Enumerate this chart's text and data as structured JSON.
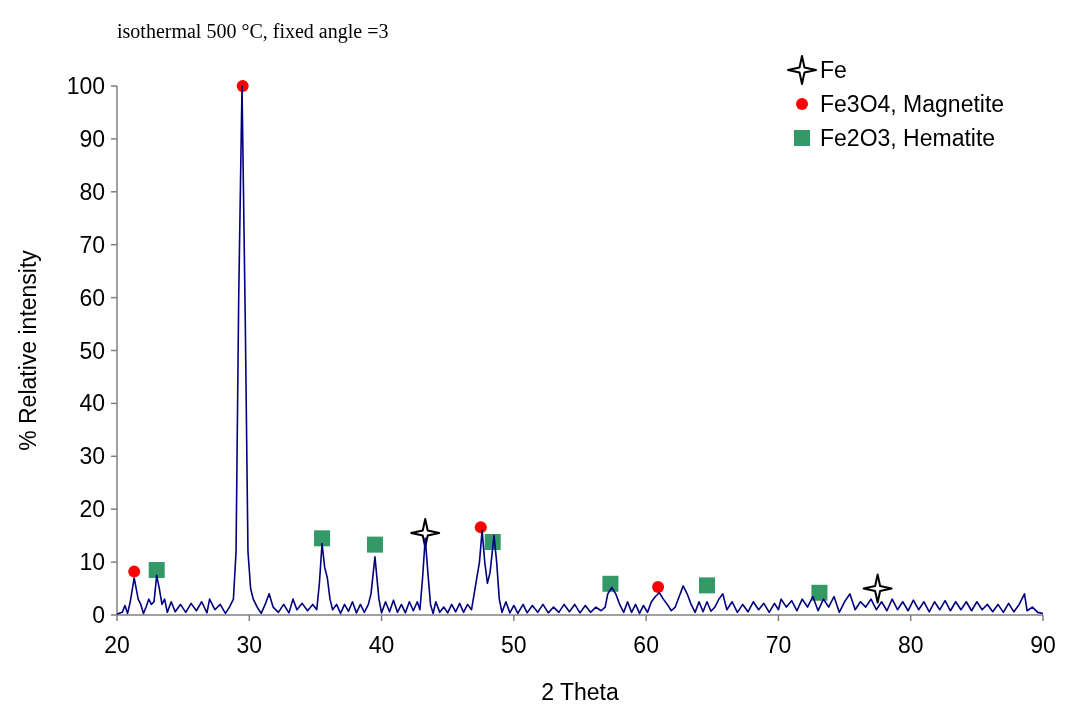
{
  "chart_data": {
    "type": "line",
    "title": "isothermal 500 °C, fixed angle =3",
    "xlabel": "2 Theta",
    "ylabel": "% Relative intensity",
    "xlim": [
      20,
      90
    ],
    "ylim": [
      0,
      100
    ],
    "xticks": [
      20,
      30,
      40,
      50,
      60,
      70,
      80,
      90
    ],
    "yticks": [
      0,
      10,
      20,
      30,
      40,
      50,
      60,
      70,
      80,
      90,
      100
    ],
    "grid": false,
    "legend": "top right",
    "series": [
      {
        "color": "#000080",
        "marker": "none",
        "line_style": "solid",
        "x": [
          20.0,
          20.4,
          20.6,
          20.8,
          21.0,
          21.3,
          21.6,
          21.8,
          22.0,
          22.2,
          22.4,
          22.6,
          22.8,
          23.0,
          23.2,
          23.4,
          23.6,
          23.8,
          24.1,
          24.4,
          24.8,
          25.2,
          25.6,
          26.0,
          26.4,
          26.8,
          27.0,
          27.4,
          27.8,
          28.2,
          28.5,
          28.8,
          29.0,
          29.2,
          29.45,
          29.7,
          29.9,
          30.1,
          30.3,
          30.6,
          30.9,
          31.2,
          31.5,
          31.8,
          32.2,
          32.6,
          33.0,
          33.3,
          33.6,
          34.0,
          34.4,
          34.8,
          35.1,
          35.3,
          35.5,
          35.7,
          35.9,
          36.1,
          36.3,
          36.6,
          36.9,
          37.2,
          37.5,
          37.8,
          38.1,
          38.4,
          38.7,
          39.0,
          39.2,
          39.5,
          39.8,
          40.0,
          40.3,
          40.6,
          40.9,
          41.2,
          41.5,
          41.8,
          42.1,
          42.4,
          42.7,
          42.9,
          43.1,
          43.3,
          43.5,
          43.7,
          43.9,
          44.1,
          44.4,
          44.7,
          45.0,
          45.3,
          45.6,
          45.9,
          46.2,
          46.5,
          46.8,
          47.0,
          47.2,
          47.4,
          47.6,
          47.8,
          48.0,
          48.2,
          48.5,
          48.7,
          48.9,
          49.1,
          49.4,
          49.7,
          50.0,
          50.3,
          50.7,
          51.0,
          51.4,
          51.8,
          52.2,
          52.6,
          53.0,
          53.4,
          53.8,
          54.2,
          54.6,
          55.0,
          55.4,
          55.8,
          56.2,
          56.6,
          56.9,
          57.1,
          57.4,
          57.7,
          58.0,
          58.3,
          58.6,
          58.9,
          59.2,
          59.5,
          59.8,
          60.1,
          60.4,
          60.7,
          61.0,
          61.3,
          61.6,
          61.9,
          62.2,
          62.5,
          62.8,
          63.1,
          63.4,
          63.7,
          64.0,
          64.3,
          64.6,
          64.9,
          65.2,
          65.5,
          65.8,
          66.1,
          66.5,
          66.9,
          67.3,
          67.7,
          68.1,
          68.5,
          68.9,
          69.3,
          69.7,
          70.0,
          70.2,
          70.6,
          71.0,
          71.4,
          71.8,
          72.2,
          72.6,
          73.0,
          73.4,
          73.8,
          74.2,
          74.6,
          75.0,
          75.4,
          75.8,
          76.2,
          76.6,
          77.0,
          77.4,
          77.8,
          78.2,
          78.6,
          79.0,
          79.4,
          79.8,
          80.2,
          80.6,
          81.0,
          81.4,
          81.8,
          82.2,
          82.6,
          83.0,
          83.4,
          83.8,
          84.2,
          84.6,
          85.0,
          85.4,
          85.8,
          86.2,
          86.6,
          87.0,
          87.4,
          87.8,
          88.2,
          88.6,
          88.8,
          89.2,
          89.6,
          90.0
        ],
        "values": [
          0.2,
          0.5,
          1.8,
          0.3,
          2.5,
          7,
          3,
          2,
          0.3,
          1.5,
          3,
          2,
          2.5,
          7.5,
          5,
          2,
          3,
          0.5,
          2.5,
          0.6,
          2,
          0.5,
          2.2,
          0.8,
          2.5,
          0.4,
          3,
          1,
          2,
          0.3,
          1.5,
          3,
          12,
          60,
          100,
          55,
          12,
          5,
          3,
          1.5,
          0.3,
          2,
          4,
          1.5,
          0.5,
          2,
          0.4,
          3,
          1,
          2.2,
          0.8,
          2,
          1,
          6,
          13.5,
          9,
          7,
          3,
          1,
          2,
          0.3,
          2,
          0.7,
          2.5,
          0.4,
          2,
          0.5,
          2,
          4,
          11,
          3,
          0.4,
          2.5,
          0.6,
          2.8,
          0.5,
          2,
          0.4,
          2.5,
          0.8,
          2.5,
          1,
          7,
          14.5,
          8,
          2,
          0.3,
          2.5,
          0.5,
          1.5,
          0.4,
          2,
          0.6,
          2.2,
          0.5,
          2,
          1,
          4,
          7,
          10,
          16,
          10,
          6,
          8,
          15,
          10,
          3,
          0.5,
          2.5,
          0.4,
          1.8,
          0.3,
          2,
          0.4,
          1.8,
          0.5,
          2,
          0.4,
          1.5,
          0.5,
          2,
          0.6,
          2,
          0.4,
          1.8,
          0.5,
          1.5,
          0.8,
          1.5,
          4,
          5.2,
          4,
          2,
          0.5,
          2.5,
          0.5,
          2,
          0.3,
          1.8,
          0.5,
          2.5,
          3.5,
          4.2,
          3,
          2,
          0.8,
          1.5,
          3.5,
          5.5,
          4,
          2,
          0.5,
          2.5,
          0.6,
          2.5,
          0.7,
          1.5,
          3,
          4,
          1,
          2.5,
          0.5,
          2,
          0.6,
          2.5,
          1,
          2.2,
          0.5,
          2.2,
          1,
          3,
          1.5,
          2.7,
          0.8,
          3,
          1.5,
          3.5,
          0.8,
          3,
          1.5,
          3.5,
          0.5,
          2.5,
          4,
          1,
          2.5,
          1.5,
          3,
          1,
          2.5,
          0.8,
          3,
          1,
          2.5,
          0.8,
          2.8,
          1,
          2.5,
          0.6,
          2.5,
          1,
          2.7,
          0.8,
          2.5,
          1,
          2.5,
          0.8,
          2.5,
          1,
          2,
          0.6,
          2,
          0.5,
          2.2,
          0.6,
          2,
          4,
          0.8,
          1.5,
          0.5,
          0.3
        ]
      },
      {
        "type": "scatter",
        "name": "Fe",
        "color": "#ffffff",
        "marker": "star",
        "x": [
          43.3,
          77.5
        ],
        "values": [
          15.5,
          5
        ]
      },
      {
        "type": "scatter",
        "name": "Fe3O4, Magnetite",
        "color": "#ff0000",
        "marker": "circle",
        "x": [
          21.3,
          29.5,
          47.5,
          60.9
        ],
        "values": [
          8.2,
          100,
          16.6,
          5.3
        ]
      },
      {
        "type": "scatter",
        "name": "Fe2O3, Hematite",
        "color": "#339966",
        "marker": "square",
        "x": [
          23.0,
          35.5,
          39.5,
          48.4,
          57.3,
          64.6,
          73.1
        ],
        "values": [
          8.5,
          14.5,
          13.3,
          13.8,
          5.9,
          5.6,
          4.2
        ]
      }
    ]
  }
}
